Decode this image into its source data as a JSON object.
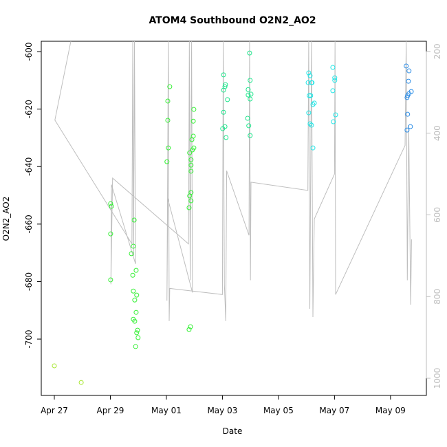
{
  "chart_data": {
    "type": "scatter",
    "title": "ATOM4 Southbound O2N2_AO2",
    "x_label": "Date",
    "y_label": "O2N2_AO2",
    "xlim": [
      -0.466,
      13.28
    ],
    "xticks": [
      {
        "value": 0,
        "label": "Apr 27"
      },
      {
        "value": 2,
        "label": "Apr 29"
      },
      {
        "value": 4,
        "label": "May 01"
      },
      {
        "value": 6,
        "label": "May 03"
      },
      {
        "value": 8,
        "label": "May 05"
      },
      {
        "value": 10,
        "label": "May 07"
      },
      {
        "value": 12,
        "label": "May 09"
      }
    ],
    "ylim": [
      -719.6,
      -596.4
    ],
    "yticks": [
      -700,
      -680,
      -660,
      -640,
      -620,
      -600
    ],
    "y2lim": [
      1042,
      175
    ],
    "y2ticks": [
      200,
      400,
      600,
      800,
      1000
    ],
    "y2_color": "#bebebe",
    "series": [
      {
        "type": "line",
        "axis": "y2",
        "color": "#bebebe",
        "x": [
          0.59,
          0.02,
          2.77,
          2.8,
          2.83,
          2.86,
          2.9,
          2.04,
          2.02,
          2.08,
          4.79,
          4.82,
          4.85,
          4.9,
          4.93,
          4.05,
          4.02,
          4.07,
          4.1,
          4.12,
          6.0,
          6.03,
          6.07,
          6.12,
          6.15,
          6.95,
          6.97,
          7.0,
          7.02,
          9.05,
          9.08,
          9.12,
          9.18,
          9.23,
          9.28,
          10.0,
          10.02,
          10.04,
          12.52,
          12.56,
          12.6,
          12.65,
          12.72,
          12.75
        ],
        "values": [
          175,
          368,
          671,
          175,
          700,
          175,
          720,
          526,
          770,
          510,
          671,
          175,
          760,
          175,
          790,
          560,
          810,
          175,
          860,
          780,
          795,
          175,
          770,
          860,
          492,
          650,
          175,
          760,
          520,
          540,
          175,
          830,
          175,
          850,
          610,
          500,
          175,
          795,
          430,
          175,
          760,
          380,
          820,
          660
        ]
      },
      {
        "color": "#a6e62e",
        "x": [
          0.0,
          0.96
        ],
        "values": [
          -709.3,
          -715.1
        ]
      },
      {
        "color": "#33f033",
        "x": [
          2.01,
          2.04,
          2.01,
          2.01,
          2.85,
          2.82,
          2.75,
          2.8,
          2.92,
          2.82,
          2.94,
          2.87,
          2.92,
          2.82,
          2.87,
          2.97,
          2.94,
          2.99,
          2.9
        ],
        "values": [
          -652.9,
          -653.8,
          -663.4,
          -679.4,
          -658.6,
          -667.7,
          -670.3,
          -677.8,
          -676.1,
          -683.3,
          -684.7,
          -686.4,
          -690.7,
          -693.1,
          -693.8,
          -696.9,
          -697.8,
          -699.5,
          -702.6
        ]
      },
      {
        "color": "#33f033",
        "x": [
          4.12,
          4.05,
          4.05,
          4.07,
          4.02,
          4.98,
          4.96,
          4.96,
          4.91,
          4.98,
          4.93,
          4.83,
          4.88,
          4.88,
          4.88,
          4.88,
          4.83,
          4.88,
          4.81,
          4.86,
          4.81
        ],
        "values": [
          -612.2,
          -617.2,
          -623.9,
          -633.5,
          -638.3,
          -620.1,
          -624.2,
          -629.4,
          -630.6,
          -633.5,
          -634.2,
          -635.2,
          -637.6,
          -639.5,
          -641.6,
          -649.0,
          -650.2,
          -651.9,
          -654.3,
          -695.7,
          -696.7
        ]
      },
      {
        "color": "#1ee68c",
        "x": [
          6.04,
          6.11,
          6.09,
          6.04,
          6.18,
          6.04,
          6.09,
          6.01,
          6.13,
          6.97,
          6.99,
          6.92,
          7.02,
          6.92,
          6.99,
          6.9,
          6.94,
          6.99
        ],
        "values": [
          -608.1,
          -611.5,
          -612.2,
          -613.4,
          -616.7,
          -621.1,
          -626.1,
          -626.8,
          -629.9,
          -600.5,
          -610.0,
          -613.2,
          -614.8,
          -615.1,
          -616.5,
          -623.2,
          -625.8,
          -629.2
        ]
      },
      {
        "color": "#1ee6e6",
        "x": [
          9.08,
          9.13,
          9.18,
          9.06,
          9.2,
          9.1,
          9.15,
          9.28,
          9.23,
          9.08,
          9.13,
          9.18,
          9.23,
          9.94,
          10.01,
          10.01,
          9.94,
          10.04,
          9.96
        ],
        "values": [
          -607.4,
          -608.4,
          -610.8,
          -610.8,
          -610.8,
          -615.3,
          -615.3,
          -617.9,
          -618.4,
          -621.3,
          -625.1,
          -625.6,
          -633.5,
          -605.5,
          -609.1,
          -610.0,
          -613.6,
          -622.0,
          -624.4
        ]
      },
      {
        "color": "#2a8ce6",
        "x": [
          12.56,
          12.66,
          12.64,
          12.74,
          12.66,
          12.61,
          12.59,
          12.61,
          12.71,
          12.59
        ],
        "values": [
          -605.0,
          -606.7,
          -610.3,
          -613.9,
          -614.6,
          -615.3,
          -616.0,
          -621.8,
          -626.1,
          -627.3
        ]
      }
    ]
  }
}
